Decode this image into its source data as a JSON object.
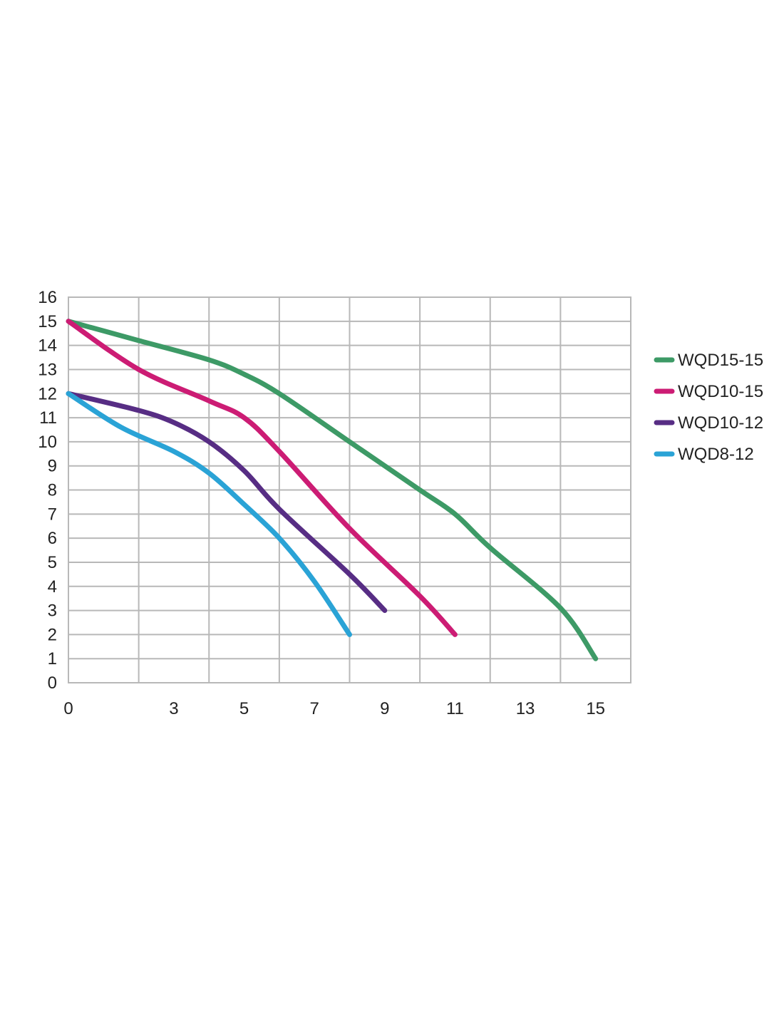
{
  "chart_data": {
    "type": "line",
    "title": "",
    "xlabel": "",
    "ylabel": "",
    "xlim": [
      0,
      16
    ],
    "ylim": [
      0,
      16
    ],
    "x_tick_labels": [
      "0",
      "3",
      "5",
      "7",
      "9",
      "11",
      "13",
      "15"
    ],
    "y_tick_labels": [
      "0",
      "1",
      "2",
      "3",
      "4",
      "5",
      "6",
      "7",
      "8",
      "9",
      "10",
      "11",
      "12",
      "13",
      "14",
      "15",
      "16"
    ],
    "grid": true,
    "legend_position": "right",
    "series": [
      {
        "name": "WQD15-15",
        "color": "#3d9a66",
        "points": [
          [
            0,
            15
          ],
          [
            2,
            14.2
          ],
          [
            4,
            13.4
          ],
          [
            5,
            12.8
          ],
          [
            6,
            12
          ],
          [
            8,
            10
          ],
          [
            10,
            8
          ],
          [
            11,
            7
          ],
          [
            12,
            5.6
          ],
          [
            14,
            3.1
          ],
          [
            15,
            1
          ]
        ]
      },
      {
        "name": "WQD10-15",
        "color": "#cc1c74",
        "points": [
          [
            0,
            15
          ],
          [
            2,
            13
          ],
          [
            4,
            11.7
          ],
          [
            5,
            11
          ],
          [
            6,
            9.6
          ],
          [
            8,
            6.4
          ],
          [
            10,
            3.6
          ],
          [
            11,
            2
          ]
        ]
      },
      {
        "name": "WQD10-12",
        "color": "#572d84",
        "points": [
          [
            0,
            12
          ],
          [
            2,
            11.3
          ],
          [
            3,
            10.8
          ],
          [
            4,
            10
          ],
          [
            5,
            8.8
          ],
          [
            6,
            7.2
          ],
          [
            8,
            4.5
          ],
          [
            9,
            3
          ]
        ]
      },
      {
        "name": "WQD8-12",
        "color": "#2aa3d6",
        "points": [
          [
            0,
            12
          ],
          [
            1.5,
            10.6
          ],
          [
            3,
            9.6
          ],
          [
            4,
            8.7
          ],
          [
            5,
            7.4
          ],
          [
            6,
            6
          ],
          [
            7,
            4.2
          ],
          [
            8,
            2
          ]
        ]
      }
    ]
  }
}
